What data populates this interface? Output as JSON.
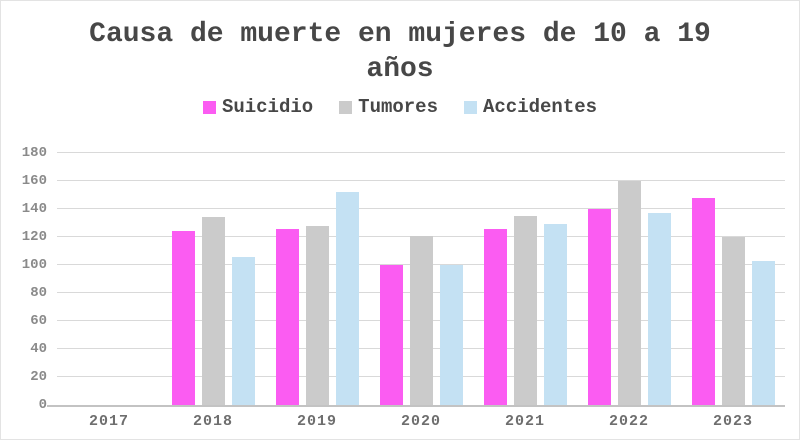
{
  "title": "Causa de muerte en mujeres de 10 a 19 años",
  "colors": {
    "suicidio": "#FB5CF2",
    "tumores": "#CBCBCB",
    "accidentes": "#C4E1F3",
    "title_text": "#474747",
    "gridline": "#D9D9D9",
    "axis_line": "#C3C3C3",
    "ytick_text": "#8A8A8A",
    "xtick_text": "#6E6E6E",
    "card_border": "#E3E3E3",
    "background": "#FFFFFF"
  },
  "legend": {
    "items": [
      {
        "label": "Suicidio",
        "color": "#FB5CF2"
      },
      {
        "label": "Tumores",
        "color": "#CBCBCB"
      },
      {
        "label": "Accidentes",
        "color": "#C4E1F3"
      }
    ]
  },
  "chart_data": {
    "type": "bar",
    "title": "Causa de muerte en mujeres de 10 a 19 años",
    "xlabel": "",
    "ylabel": "",
    "categories": [
      "2017",
      "2018",
      "2019",
      "2020",
      "2021",
      "2022",
      "2023"
    ],
    "series": [
      {
        "name": "Suicidio",
        "color": "#FB5CF2",
        "values": [
          0,
          124,
          126,
          100,
          126,
          140,
          148
        ]
      },
      {
        "name": "Tumores",
        "color": "#CBCBCB",
        "values": [
          0,
          134,
          128,
          121,
          135,
          160,
          120
        ]
      },
      {
        "name": "Accidentes",
        "color": "#C4E1F3",
        "values": [
          0,
          106,
          152,
          100,
          129,
          137,
          103
        ]
      }
    ],
    "ylim": [
      0,
      180
    ],
    "yticks": [
      180,
      160,
      140,
      120,
      100,
      80,
      60,
      40,
      20,
      0
    ],
    "grid": true,
    "legend_position": "top"
  }
}
